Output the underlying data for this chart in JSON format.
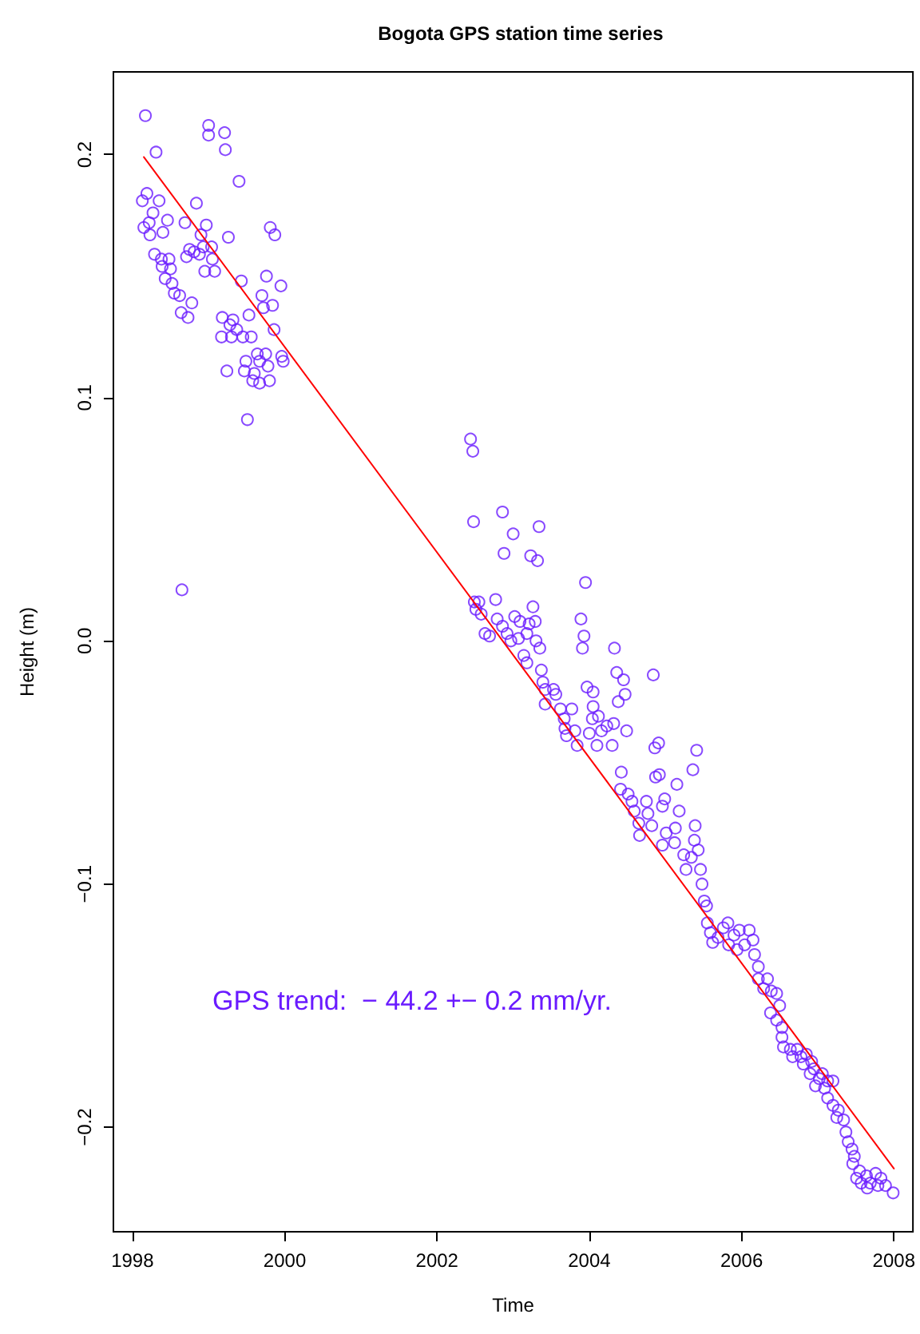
{
  "chart_data": {
    "type": "scatter",
    "title": "Bogota GPS station time series",
    "xlabel": "Time",
    "ylabel": "Height (m)",
    "xlim": [
      1997.75,
      2008.25
    ],
    "xticks": [
      1998,
      2000,
      2002,
      2004,
      2006,
      2008
    ],
    "ylim": [
      -0.243,
      0.234
    ],
    "yticks": [
      {
        "value": -0.2,
        "label": "−0.2"
      },
      {
        "value": -0.1,
        "label": "−0.1"
      },
      {
        "value": 0,
        "label": "0.0"
      },
      {
        "value": 0.1,
        "label": "0.1"
      },
      {
        "value": 0.2,
        "label": "0.2"
      }
    ],
    "grid": false,
    "marker": "circle",
    "annotations": [
      "GPS trend:  − 44.2 +− 0.2 mm/yr."
    ],
    "series": [
      {
        "color": "#6a1bff",
        "x": [
          1998.17,
          1998.31,
          1999.0,
          1999.0,
          1999.21,
          1999.22,
          1999.4,
          1998.19,
          1998.13,
          1998.35,
          1998.27,
          1998.22,
          1998.15,
          1998.4,
          1998.46,
          1998.23,
          1998.84,
          1998.69,
          1998.97,
          1998.9,
          1999.26,
          1999.81,
          1999.87,
          1998.29,
          1998.38,
          1998.48,
          1998.39,
          1998.5,
          1998.43,
          1998.52,
          1998.55,
          1998.62,
          1998.78,
          1998.64,
          1998.73,
          1998.71,
          1998.81,
          1998.75,
          1998.88,
          1998.93,
          1999.04,
          1999.05,
          1998.95,
          1999.08,
          1999.43,
          1999.76,
          1999.95,
          1999.7,
          1999.72,
          1999.84,
          1999.53,
          1999.86,
          1999.18,
          1999.32,
          1999.28,
          1999.37,
          1999.17,
          1999.3,
          1999.45,
          1999.56,
          1999.64,
          1999.75,
          1999.49,
          1999.67,
          1999.78,
          1999.96,
          1999.98,
          1999.47,
          1999.6,
          1999.58,
          1999.67,
          1999.8,
          1999.24,
          1999.51,
          1998.65,
          2002.44,
          2002.47,
          2002.48,
          2002.86,
          2003.0,
          2003.34,
          2002.88,
          2003.23,
          2003.32,
          2003.95,
          2002.49,
          2002.55,
          2002.51,
          2002.58,
          2002.77,
          2002.79,
          2002.63,
          2002.69,
          2002.86,
          2002.92,
          2003.02,
          2003.09,
          2003.21,
          2003.26,
          2003.29,
          2002.97,
          2003.07,
          2003.18,
          2003.3,
          2003.35,
          2003.14,
          2003.18,
          2003.37,
          2003.89,
          2003.93,
          2003.91,
          2004.33,
          2004.36,
          2004.45,
          2004.84,
          2004.47,
          2004.38,
          2003.97,
          2004.05,
          2003.39,
          2003.42,
          2003.53,
          2003.56,
          2003.42,
          2003.62,
          2003.77,
          2003.67,
          2004.05,
          2004.04,
          2004.12,
          2003.68,
          2003.81,
          2003.7,
          2003.84,
          2004.0,
          2004.16,
          2004.23,
          2004.32,
          2004.49,
          2004.1,
          2004.3,
          2004.86,
          2004.91,
          2005.41,
          2005.36,
          2004.87,
          2004.92,
          2005.15,
          2004.42,
          2004.41,
          2004.51,
          2004.56,
          2004.75,
          2004.99,
          2004.59,
          2004.77,
          2004.96,
          2005.18,
          2004.65,
          2004.82,
          2004.66,
          2005.01,
          2005.13,
          2005.39,
          2004.96,
          2005.12,
          2005.38,
          2005.43,
          2005.24,
          2005.34,
          2005.27,
          2005.46,
          2005.48,
          2005.51,
          2005.54,
          2005.55,
          2005.59,
          2005.62,
          2005.69,
          2005.76,
          2005.82,
          2005.9,
          2005.97,
          2006.1,
          2006.15,
          2006.04,
          2005.94,
          2005.83,
          2006.17,
          2006.22,
          2006.22,
          2006.34,
          2006.29,
          2006.39,
          2006.46,
          2006.5,
          2006.38,
          2006.46,
          2006.53,
          2006.53,
          2006.55,
          2006.64,
          2006.73,
          2006.67,
          2006.78,
          2006.85,
          2006.81,
          2006.92,
          2006.95,
          2006.9,
          2007.06,
          2007.02,
          2007.13,
          2007.2,
          2006.97,
          2007.09,
          2007.13,
          2007.2,
          2007.27,
          2007.25,
          2007.34,
          2007.37,
          2007.4,
          2007.45,
          2007.48,
          2007.46,
          2007.55,
          2007.51,
          2007.57,
          2007.64,
          2007.69,
          2007.76,
          2007.83,
          2007.79,
          2007.89,
          2007.99,
          2007.65
        ],
        "values": [
          0.216,
          0.201,
          0.212,
          0.208,
          0.209,
          0.202,
          0.189,
          0.184,
          0.181,
          0.181,
          0.176,
          0.172,
          0.17,
          0.168,
          0.173,
          0.167,
          0.18,
          0.172,
          0.171,
          0.167,
          0.166,
          0.17,
          0.167,
          0.159,
          0.157,
          0.157,
          0.154,
          0.153,
          0.149,
          0.147,
          0.143,
          0.142,
          0.139,
          0.135,
          0.133,
          0.158,
          0.16,
          0.161,
          0.159,
          0.162,
          0.162,
          0.157,
          0.152,
          0.152,
          0.148,
          0.15,
          0.146,
          0.142,
          0.137,
          0.138,
          0.134,
          0.128,
          0.133,
          0.132,
          0.13,
          0.128,
          0.125,
          0.125,
          0.125,
          0.125,
          0.118,
          0.118,
          0.115,
          0.115,
          0.113,
          0.117,
          0.115,
          0.111,
          0.11,
          0.107,
          0.106,
          0.107,
          0.111,
          0.091,
          0.021,
          0.083,
          0.078,
          0.049,
          0.053,
          0.044,
          0.047,
          0.036,
          0.035,
          0.033,
          0.024,
          0.016,
          0.016,
          0.013,
          0.011,
          0.017,
          0.009,
          0.003,
          0.002,
          0.006,
          0.003,
          0.01,
          0.008,
          0.007,
          0.014,
          0.008,
          0.0,
          0.001,
          0.003,
          0.0,
          -0.003,
          -0.006,
          -0.009,
          -0.012,
          0.009,
          0.002,
          -0.003,
          -0.003,
          -0.013,
          -0.016,
          -0.014,
          -0.022,
          -0.025,
          -0.019,
          -0.021,
          -0.017,
          -0.02,
          -0.02,
          -0.022,
          -0.026,
          -0.028,
          -0.028,
          -0.032,
          -0.027,
          -0.032,
          -0.031,
          -0.036,
          -0.037,
          -0.039,
          -0.043,
          -0.038,
          -0.037,
          -0.035,
          -0.034,
          -0.037,
          -0.043,
          -0.043,
          -0.044,
          -0.042,
          -0.045,
          -0.053,
          -0.056,
          -0.055,
          -0.059,
          -0.054,
          -0.061,
          -0.063,
          -0.066,
          -0.066,
          -0.065,
          -0.07,
          -0.071,
          -0.068,
          -0.07,
          -0.075,
          -0.076,
          -0.08,
          -0.079,
          -0.077,
          -0.076,
          -0.084,
          -0.083,
          -0.082,
          -0.086,
          -0.088,
          -0.089,
          -0.094,
          -0.094,
          -0.1,
          -0.107,
          -0.109,
          -0.116,
          -0.12,
          -0.124,
          -0.122,
          -0.118,
          -0.116,
          -0.121,
          -0.119,
          -0.119,
          -0.123,
          -0.125,
          -0.127,
          -0.125,
          -0.129,
          -0.134,
          -0.139,
          -0.139,
          -0.143,
          -0.144,
          -0.145,
          -0.15,
          -0.153,
          -0.156,
          -0.159,
          -0.163,
          -0.167,
          -0.168,
          -0.168,
          -0.171,
          -0.171,
          -0.17,
          -0.174,
          -0.173,
          -0.176,
          -0.178,
          -0.178,
          -0.18,
          -0.181,
          -0.181,
          -0.183,
          -0.184,
          -0.188,
          -0.191,
          -0.193,
          -0.196,
          -0.197,
          -0.202,
          -0.206,
          -0.209,
          -0.212,
          -0.215,
          -0.218,
          -0.221,
          -0.223,
          -0.22,
          -0.223,
          -0.219,
          -0.221,
          -0.224,
          -0.224,
          -0.227,
          -0.225
        ]
      },
      {
        "type": "line",
        "color": "#ff0000",
        "marker": "none",
        "line_style": "solid",
        "x": [
          1998.15,
          2008.0
        ],
        "values": [
          0.199,
          -0.217
        ]
      }
    ]
  }
}
